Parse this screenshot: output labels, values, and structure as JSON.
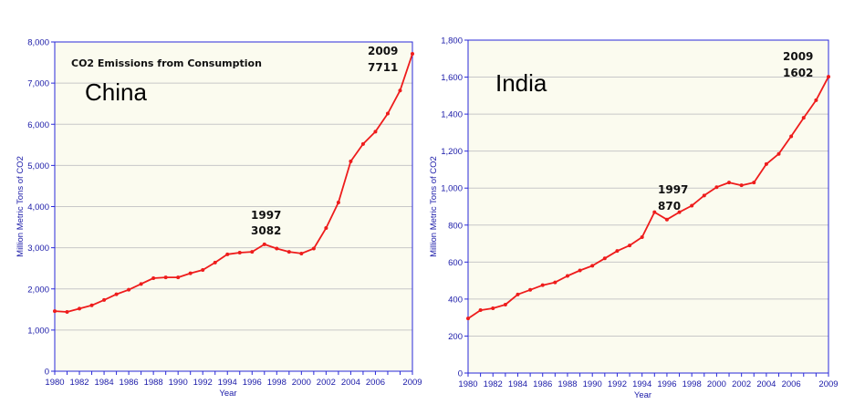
{
  "chart_data": [
    {
      "type": "line",
      "label": "China",
      "subtitle": "CO2 Emissions from Consumption",
      "xlabel": "Year",
      "ylabel": "Million Metric Tons of CO2",
      "xlim": [
        1980,
        2009
      ],
      "ylim": [
        0,
        8000
      ],
      "yticks": [
        "0",
        "1,000",
        "2,000",
        "3,000",
        "4,000",
        "5,000",
        "6,000",
        "7,000",
        "8,000"
      ],
      "xticks": [
        "1980",
        "1982",
        "1984",
        "1986",
        "1988",
        "1990",
        "1992",
        "1994",
        "1996",
        "1998",
        "2000",
        "2002",
        "2004",
        "2006",
        "2009"
      ],
      "grid": true,
      "series": [
        {
          "x": [
            1980,
            1981,
            1982,
            1983,
            1984,
            1985,
            1986,
            1987,
            1988,
            1989,
            1990,
            1991,
            1992,
            1993,
            1994,
            1995,
            1996,
            1997,
            1998,
            1999,
            2000,
            2001,
            2002,
            2003,
            2004,
            2005,
            2006,
            2007,
            2008,
            2009
          ],
          "values": [
            1460,
            1440,
            1520,
            1600,
            1730,
            1870,
            1980,
            2120,
            2260,
            2280,
            2280,
            2380,
            2460,
            2640,
            2840,
            2880,
            2900,
            3082,
            2980,
            2900,
            2860,
            2980,
            3480,
            4100,
            5100,
            5520,
            5820,
            6260,
            6820,
            7711
          ]
        }
      ],
      "annotations": [
        {
          "year_label": "1997",
          "value_label": "3082"
        },
        {
          "year_label": "2009",
          "value_label": "7711"
        }
      ],
      "colors": {
        "line": "#ee1c1c",
        "axis": "#2a2ad8",
        "plot_bg": "#fbfbef",
        "grid": "#c8c8c8"
      }
    },
    {
      "type": "line",
      "label": "India",
      "xlabel": "Year",
      "ylabel": "Million Metric Tons of CO2",
      "xlim": [
        1980,
        2009
      ],
      "ylim": [
        0,
        1800
      ],
      "yticks": [
        "0",
        "200",
        "400",
        "600",
        "800",
        "1,000",
        "1,200",
        "1,400",
        "1,600",
        "1,800"
      ],
      "xticks": [
        "1980",
        "1982",
        "1984",
        "1986",
        "1988",
        "1990",
        "1992",
        "1994",
        "1996",
        "1998",
        "2000",
        "2002",
        "2004",
        "2006",
        "2009"
      ],
      "grid": true,
      "series": [
        {
          "x": [
            1980,
            1981,
            1982,
            1983,
            1984,
            1985,
            1986,
            1987,
            1988,
            1989,
            1990,
            1991,
            1992,
            1993,
            1994,
            1995,
            1996,
            1997,
            1998,
            1999,
            2000,
            2001,
            2002,
            2003,
            2004,
            2005,
            2006,
            2007,
            2008,
            2009
          ],
          "values": [
            295,
            340,
            350,
            370,
            425,
            450,
            475,
            490,
            525,
            555,
            580,
            620,
            660,
            690,
            735,
            870,
            830,
            870,
            905,
            960,
            1005,
            1030,
            1015,
            1030,
            1130,
            1185,
            1280,
            1380,
            1475,
            1602
          ]
        }
      ],
      "annotations": [
        {
          "year_label": "1997",
          "value_label": "870"
        },
        {
          "year_label": "2009",
          "value_label": "1602"
        }
      ],
      "colors": {
        "line": "#ee1c1c",
        "axis": "#2a2ad8",
        "plot_bg": "#fbfbef",
        "grid": "#c8c8c8"
      }
    }
  ]
}
